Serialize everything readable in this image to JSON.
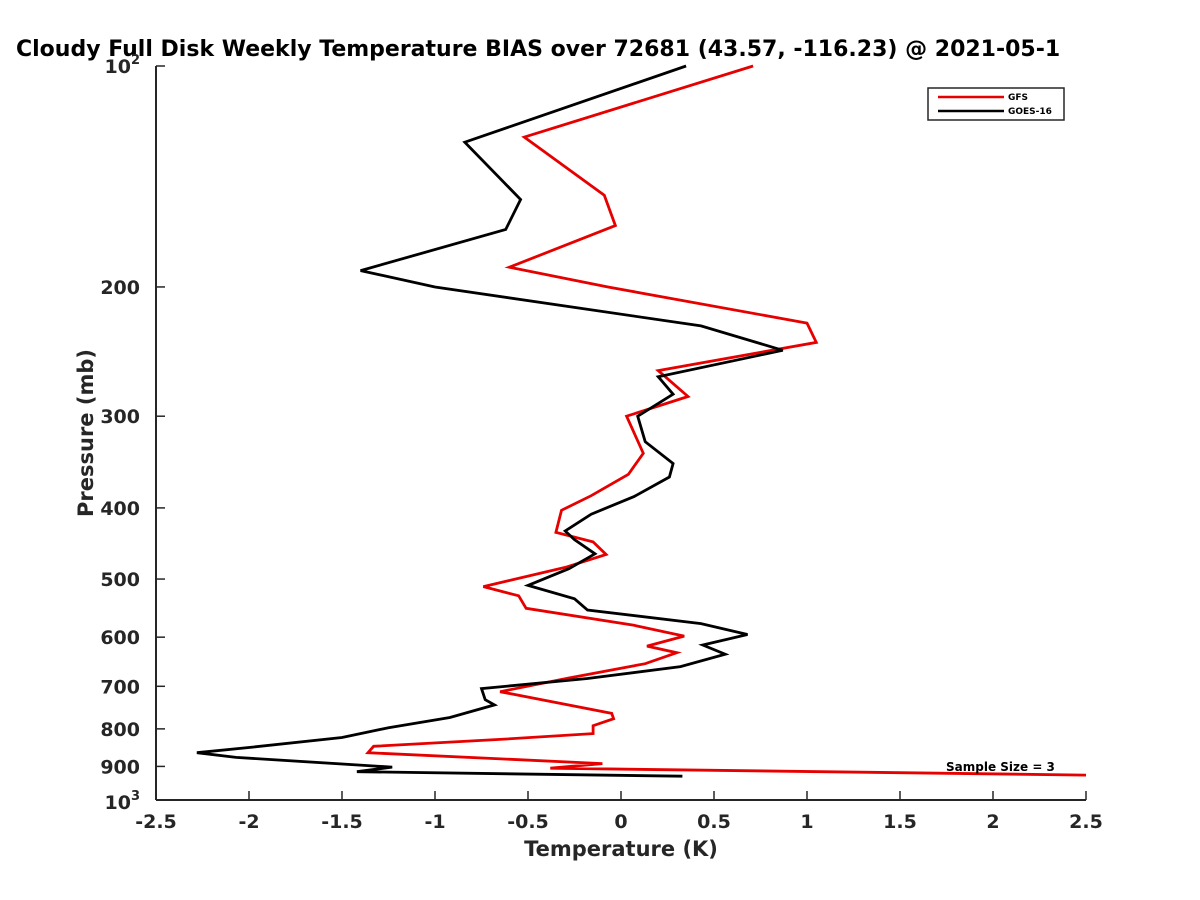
{
  "chart_data": {
    "type": "line",
    "title": "Cloudy Full Disk Weekly Temperature BIAS over 72681 (43.57, -116.23) @ 2021-05-1",
    "xlabel": "Temperature (K)",
    "ylabel": "Pressure (mb)",
    "xlim": [
      -2.5,
      2.5
    ],
    "ylim": [
      100,
      1000
    ],
    "y_scale": "log",
    "y_reversed": true,
    "grid": false,
    "legend_position": "top-right",
    "x_ticks": [
      "-2.5",
      "-2",
      "-1.5",
      "-1",
      "-0.5",
      "0",
      "0.5",
      "1",
      "1.5",
      "2",
      "2.5"
    ],
    "y_ticks": [
      "200",
      "300",
      "400",
      "500",
      "600",
      "700",
      "800",
      "900"
    ],
    "y_tick_top": {
      "base": "10",
      "exp": "2"
    },
    "y_tick_bottom": {
      "base": "10",
      "exp": "3"
    },
    "annotation": "Sample Size = 3",
    "series": [
      {
        "name": "GFS",
        "color": "#e60000",
        "points": [
          [
            0.71,
            100
          ],
          [
            -0.52,
            125
          ],
          [
            -0.09,
            150
          ],
          [
            -0.03,
            165
          ],
          [
            -0.6,
            188
          ],
          [
            -0.07,
            200
          ],
          [
            1.0,
            224
          ],
          [
            1.05,
            238
          ],
          [
            0.2,
            260
          ],
          [
            0.36,
            282
          ],
          [
            0.03,
            300
          ],
          [
            0.12,
            337
          ],
          [
            0.04,
            360
          ],
          [
            -0.16,
            385
          ],
          [
            -0.32,
            403
          ],
          [
            -0.35,
            432
          ],
          [
            -0.15,
            445
          ],
          [
            -0.08,
            463
          ],
          [
            -0.3,
            482
          ],
          [
            -0.74,
            512
          ],
          [
            -0.55,
            527
          ],
          [
            -0.51,
            548
          ],
          [
            0.07,
            578
          ],
          [
            0.34,
            598
          ],
          [
            0.14,
            617
          ],
          [
            0.3,
            630
          ],
          [
            0.13,
            652
          ],
          [
            -0.28,
            682
          ],
          [
            -0.65,
            712
          ],
          [
            -0.05,
            762
          ],
          [
            -0.04,
            775
          ],
          [
            -0.15,
            792
          ],
          [
            -0.15,
            812
          ],
          [
            -0.65,
            827
          ],
          [
            -1.33,
            845
          ],
          [
            -1.36,
            862
          ],
          [
            -0.1,
            892
          ],
          [
            -0.38,
            905
          ],
          [
            2.5,
            925
          ]
        ]
      },
      {
        "name": "GOES-16",
        "color": "#000000",
        "points": [
          [
            0.35,
            100
          ],
          [
            -0.84,
            127
          ],
          [
            -0.54,
            152
          ],
          [
            -0.62,
            167
          ],
          [
            -1.4,
            190
          ],
          [
            -1.0,
            200
          ],
          [
            0.43,
            226
          ],
          [
            0.87,
            244
          ],
          [
            0.2,
            265
          ],
          [
            0.28,
            280
          ],
          [
            0.09,
            300
          ],
          [
            0.13,
            325
          ],
          [
            0.28,
            348
          ],
          [
            0.26,
            363
          ],
          [
            0.07,
            386
          ],
          [
            -0.16,
            408
          ],
          [
            -0.3,
            430
          ],
          [
            -0.25,
            442
          ],
          [
            -0.14,
            462
          ],
          [
            -0.28,
            484
          ],
          [
            -0.5,
            510
          ],
          [
            -0.25,
            532
          ],
          [
            -0.18,
            551
          ],
          [
            0.43,
            575
          ],
          [
            0.68,
            595
          ],
          [
            0.44,
            615
          ],
          [
            0.56,
            633
          ],
          [
            0.32,
            658
          ],
          [
            -0.18,
            683
          ],
          [
            -0.75,
            705
          ],
          [
            -0.73,
            730
          ],
          [
            -0.68,
            742
          ],
          [
            -0.92,
            772
          ],
          [
            -1.25,
            797
          ],
          [
            -1.5,
            822
          ],
          [
            -1.98,
            847
          ],
          [
            -2.28,
            862
          ],
          [
            -2.07,
            875
          ],
          [
            -1.23,
            902
          ],
          [
            -1.42,
            915
          ],
          [
            0.33,
            928
          ]
        ]
      }
    ]
  }
}
